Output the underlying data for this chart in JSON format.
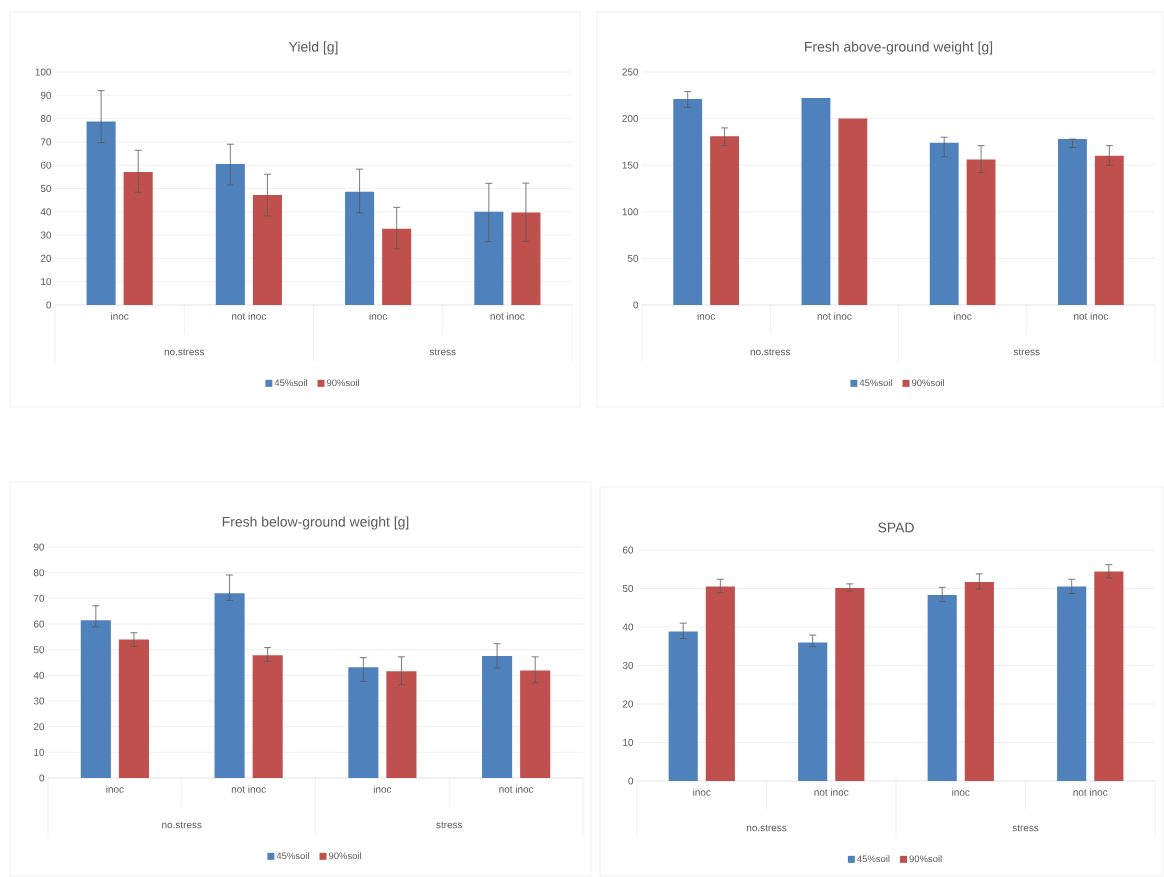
{
  "chart_data": [
    {
      "type": "bar",
      "title": "Yield [g]",
      "categories": [
        "inoc",
        "not inoc",
        "inoc",
        "not inoc"
      ],
      "annotations": [
        "no.stress",
        "stress"
      ],
      "ylim": [
        0,
        100
      ],
      "yticks": [
        0,
        10,
        20,
        30,
        40,
        50,
        60,
        70,
        80,
        90,
        100
      ],
      "grid": "y",
      "legend": "bottom",
      "series": [
        {
          "name": "45%soil",
          "color": "#4f81bd",
          "values": [
            78.7,
            60.5,
            48.6,
            40
          ],
          "errors": [
            [
              69.7,
              92
            ],
            [
              51.5,
              69
            ],
            [
              39.5,
              58.3
            ],
            [
              27.2,
              52.2
            ]
          ]
        },
        {
          "name": "90%soil",
          "color": "#c0504d",
          "values": [
            57.1,
            47.2,
            32.7,
            39.7
          ],
          "errors": [
            [
              48.4,
              66.4
            ],
            [
              38.2,
              56.1
            ],
            [
              24.1,
              41.9
            ],
            [
              27.3,
              52.3
            ]
          ]
        }
      ]
    },
    {
      "type": "bar",
      "title": "Fresh above-ground weight [g]",
      "categories": [
        "inoc",
        "not inoc",
        "inoc",
        "not inoc"
      ],
      "annotations": [
        "no.stress",
        "stress"
      ],
      "ylim": [
        0,
        250
      ],
      "yticks": [
        0,
        50,
        100,
        150,
        200,
        250
      ],
      "grid": "y",
      "legend": "bottom",
      "series": [
        {
          "name": "45%soil",
          "color": "#4f81bd",
          "values": [
            221,
            222,
            174,
            178
          ],
          "errors": [
            [
              212,
              229
            ],
            null,
            [
              159,
              180
            ],
            [
              169,
              178
            ]
          ]
        },
        {
          "name": "90%soil",
          "color": "#c0504d",
          "values": [
            181,
            200,
            156,
            160
          ],
          "errors": [
            [
              171,
              190
            ],
            null,
            [
              142,
              171
            ],
            [
              150,
              171
            ]
          ]
        }
      ]
    },
    {
      "type": "bar",
      "title": "Fresh below-ground weight [g]",
      "categories": [
        "inoc",
        "not inoc",
        "inoc",
        "not inoc"
      ],
      "annotations": [
        "no.stress",
        "stress"
      ],
      "ylim": [
        0,
        90
      ],
      "yticks": [
        0,
        10,
        20,
        30,
        40,
        50,
        60,
        70,
        80,
        90
      ],
      "grid": "y",
      "legend": "bottom",
      "series": [
        {
          "name": "45%soil",
          "color": "#4f81bd",
          "values": [
            61.5,
            72,
            43.1,
            47.5
          ],
          "errors": [
            [
              58.9,
              67.1
            ],
            [
              69.2,
              79.1
            ],
            [
              37.6,
              46.9
            ],
            [
              42.8,
              52.3
            ]
          ]
        },
        {
          "name": "90%soil",
          "color": "#c0504d",
          "values": [
            54,
            47.8,
            41.6,
            41.9
          ],
          "errors": [
            [
              51.3,
              56.6
            ],
            [
              45.5,
              50.8
            ],
            [
              36.3,
              47.2
            ],
            [
              37.1,
              47.2
            ]
          ]
        }
      ]
    },
    {
      "type": "bar",
      "title": "SPAD",
      "categories": [
        "inoc",
        "not inoc",
        "inoc",
        "not inoc"
      ],
      "annotations": [
        "no.stress",
        "stress"
      ],
      "ylim": [
        0,
        60
      ],
      "yticks": [
        0,
        10,
        20,
        30,
        40,
        50,
        60
      ],
      "grid": "y",
      "legend": "bottom",
      "series": [
        {
          "name": "45%soil",
          "color": "#4f81bd",
          "values": [
            38.8,
            36,
            48.3,
            50.5
          ],
          "errors": [
            [
              37,
              41
            ],
            [
              34.9,
              37.9
            ],
            [
              46.6,
              50.3
            ],
            [
              48.7,
              52.4
            ]
          ]
        },
        {
          "name": "90%soil",
          "color": "#c0504d",
          "values": [
            50.5,
            50.1,
            51.7,
            54.4
          ],
          "errors": [
            [
              48.9,
              52.4
            ],
            [
              49.3,
              51.2
            ],
            [
              49.9,
              53.8
            ],
            [
              52.7,
              56.2
            ]
          ]
        }
      ]
    }
  ]
}
